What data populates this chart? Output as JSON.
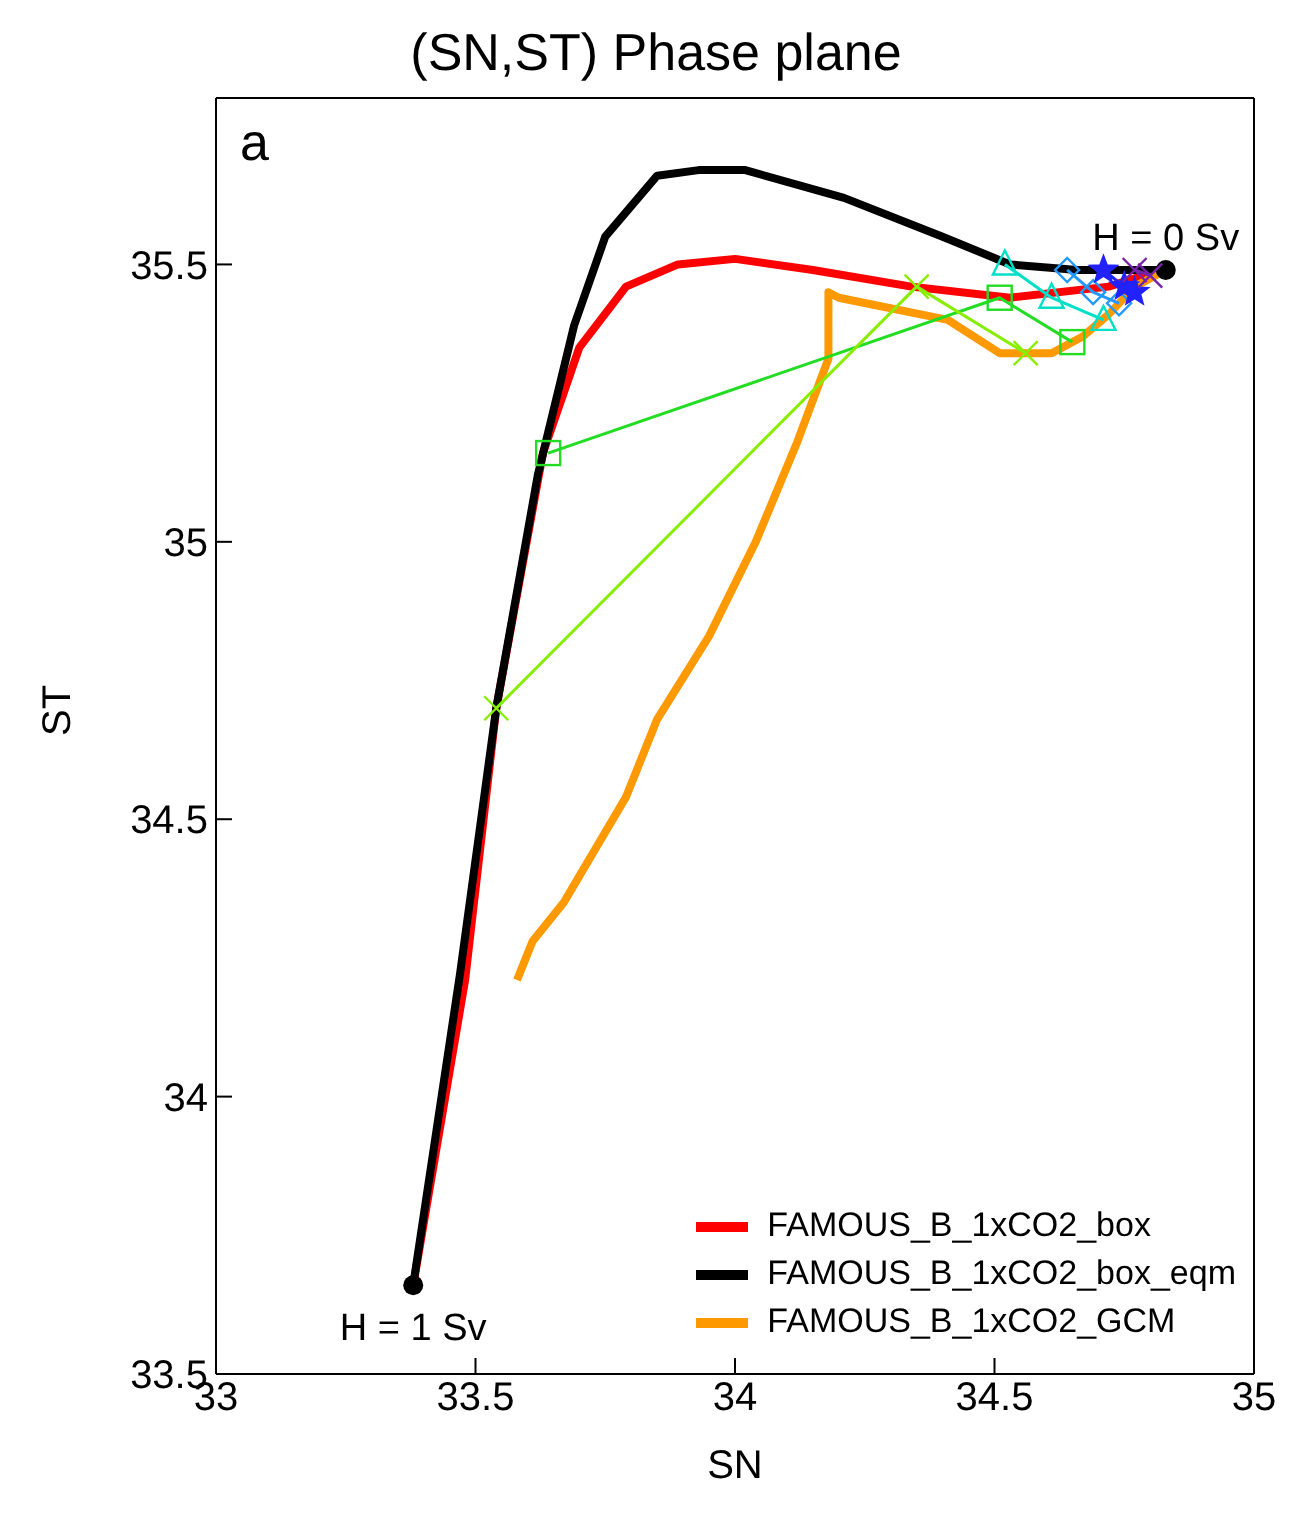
{
  "chart_data": {
    "type": "line",
    "title": "(SN,ST) Phase plane",
    "xlabel": "SN",
    "ylabel": "ST",
    "xlim": [
      33,
      35
    ],
    "xticks": [
      33,
      33.5,
      34,
      34.5,
      35
    ],
    "ylim": [
      33.5,
      35.8
    ],
    "yticks": [
      33.5,
      34,
      34.5,
      35,
      35.5
    ],
    "legend": "bottom right",
    "line_style": "solid",
    "marker": "none",
    "annotations": [
      "a",
      {
        "text": "H = 0 Sv",
        "x": 34.83,
        "y": 35.49
      },
      {
        "text": "H = 1 Sv",
        "x": 33.38,
        "y": 33.66
      }
    ],
    "series": [
      {
        "name": "FAMOUS_B_1xCO2_box",
        "color": "#ff0000",
        "x": [
          33.38,
          33.48,
          33.54,
          33.63,
          33.7,
          33.79,
          33.89,
          34.0,
          34.15,
          34.34,
          34.53,
          34.72,
          34.82
        ],
        "values": [
          33.66,
          34.21,
          34.7,
          35.16,
          35.35,
          35.46,
          35.5,
          35.51,
          35.49,
          35.46,
          35.44,
          35.46,
          35.49
        ]
      },
      {
        "name": "FAMOUS_B_1xCO2_box_eqm",
        "color": "#000000",
        "x": [
          33.38,
          33.47,
          33.54,
          33.62,
          33.69,
          33.75,
          33.85,
          33.93,
          34.02,
          34.21,
          34.4,
          34.53,
          34.66,
          34.83
        ],
        "values": [
          33.66,
          34.22,
          34.7,
          35.12,
          35.39,
          35.55,
          35.66,
          35.67,
          35.67,
          35.62,
          35.55,
          35.5,
          35.49,
          35.49
        ]
      },
      {
        "name": "FAMOUS_B_1xCO2_GCM",
        "color": "#ff9900",
        "x": [
          33.58,
          33.61,
          33.67,
          33.79,
          33.85,
          33.95,
          34.04,
          34.12,
          34.18,
          34.18,
          34.2,
          34.41,
          34.51,
          34.61,
          34.67,
          34.72,
          34.77,
          34.83
        ],
        "values": [
          34.21,
          34.28,
          34.35,
          34.54,
          34.68,
          34.83,
          35.0,
          35.18,
          35.33,
          35.45,
          35.44,
          35.4,
          35.34,
          35.34,
          35.37,
          35.41,
          35.46,
          35.49
        ]
      },
      {
        "type": "scatter",
        "color": "#000000",
        "marker": "circle",
        "x": [
          33.38,
          34.83
        ],
        "values": [
          33.66,
          35.49
        ]
      },
      {
        "color": "#22dd22",
        "marker": "square",
        "x": [
          33.64,
          34.51,
          34.65
        ],
        "values": [
          35.16,
          35.44,
          35.36
        ]
      },
      {
        "color": "#88ee00",
        "marker": "cross",
        "x": [
          33.54,
          34.35,
          34.56
        ],
        "values": [
          34.7,
          35.46,
          35.34
        ]
      },
      {
        "color": "#00e0c8",
        "marker": "triangle",
        "x": [
          34.52,
          34.61,
          34.71
        ],
        "values": [
          35.5,
          35.44,
          35.4
        ]
      },
      {
        "color": "#2299ff",
        "marker": "diamond",
        "x": [
          34.64,
          34.69,
          34.74
        ],
        "values": [
          35.49,
          35.45,
          35.43
        ]
      },
      {
        "color": "#2222ff",
        "marker": "star",
        "x": [
          34.71,
          34.75,
          34.77
        ],
        "values": [
          35.49,
          35.46,
          35.45
        ]
      },
      {
        "color": "#7722aa",
        "marker": "cross",
        "x": [
          34.77,
          34.8
        ],
        "values": [
          35.49,
          35.48
        ]
      }
    ]
  }
}
